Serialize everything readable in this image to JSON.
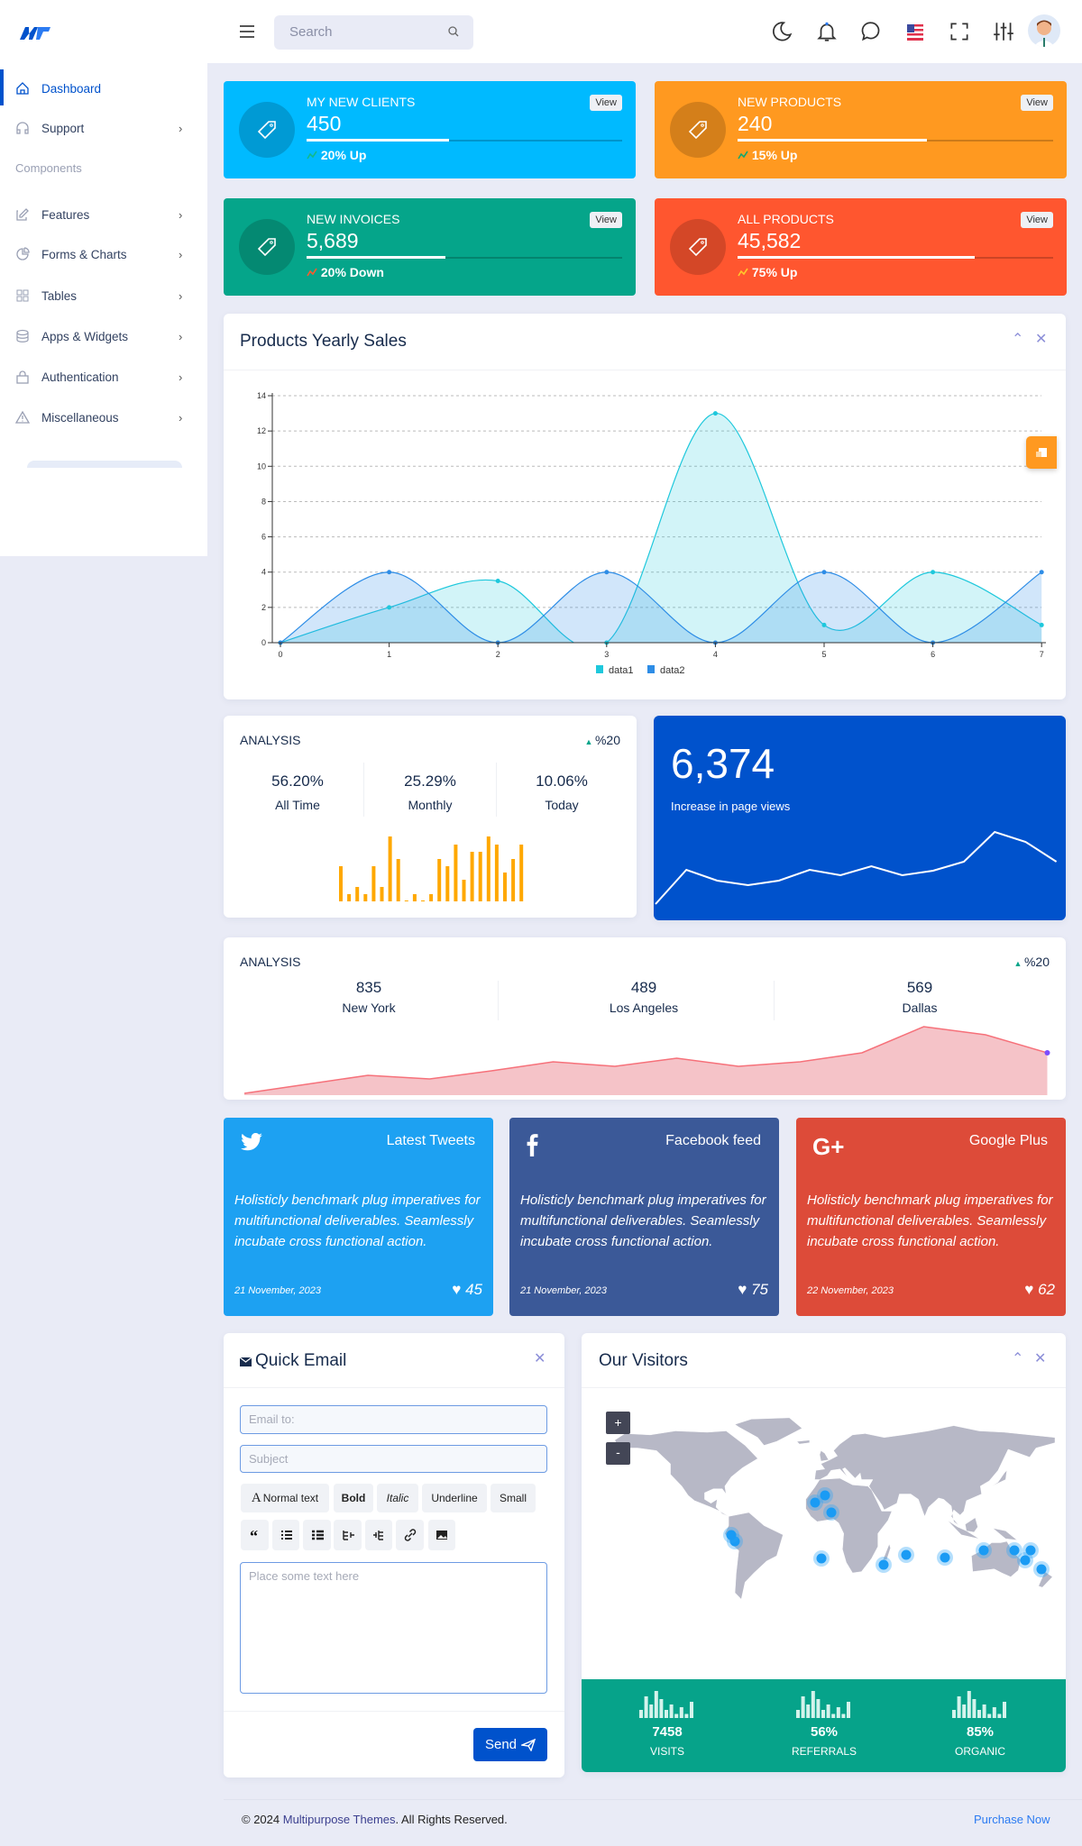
{
  "header": {
    "search_placeholder": "Search",
    "icons": [
      "menu-icon",
      "search-icon",
      "moon-icon",
      "bell-icon",
      "chat-icon",
      "us-flag-icon",
      "fullscreen-icon",
      "sliders-icon",
      "avatar"
    ]
  },
  "sidebar": {
    "section_label": "Components",
    "items": [
      {
        "label": "Dashboard",
        "icon": "home-icon",
        "active": true
      },
      {
        "label": "Support",
        "icon": "headset-icon"
      },
      {
        "label": "Features",
        "icon": "edit-icon"
      },
      {
        "label": "Forms & Charts",
        "icon": "pie-icon"
      },
      {
        "label": "Tables",
        "icon": "grid-icon"
      },
      {
        "label": "Apps & Widgets",
        "icon": "database-icon"
      },
      {
        "label": "Authentication",
        "icon": "lock-icon"
      },
      {
        "label": "Miscellaneous",
        "icon": "warning-icon"
      }
    ]
  },
  "stats": [
    {
      "title": "MY NEW CLIENTS",
      "value": "450",
      "trend": "20% Up",
      "progress": 45,
      "color": "#00baff",
      "trend_color": "#13b98a",
      "view_label": "View"
    },
    {
      "title": "NEW PRODUCTS",
      "value": "240",
      "trend": "15% Up",
      "progress": 60,
      "color": "#ff9920",
      "trend_color": "#13a870",
      "view_label": "View"
    },
    {
      "title": "NEW INVOICES",
      "value": "5,689",
      "trend": "20% Down",
      "progress": 44,
      "color": "#05a58a",
      "trend_color": "#ff5a2c",
      "view_label": "View"
    },
    {
      "title": "ALL PRODUCTS",
      "value": "45,582",
      "trend": "75% Up",
      "progress": 75,
      "color": "#ff562f",
      "trend_color": "#ffc82c",
      "view_label": "View"
    }
  ],
  "yearly_sales": {
    "title": "Products Yearly Sales"
  },
  "analysis1": {
    "title": "ANALYSIS",
    "change": "%20",
    "cols": [
      {
        "value": "56.20%",
        "label": "All Time"
      },
      {
        "value": "25.29%",
        "label": "Monthly"
      },
      {
        "value": "10.06%",
        "label": "Today"
      }
    ]
  },
  "pageviews": {
    "value": "6,374",
    "label": "Increase in page views",
    "color": "#0052cc"
  },
  "analysis2": {
    "title": "ANALYSIS",
    "change": "%20",
    "cols": [
      {
        "value": "835",
        "label": "New York"
      },
      {
        "value": "489",
        "label": "Los Angeles"
      },
      {
        "value": "569",
        "label": "Dallas"
      }
    ]
  },
  "social": [
    {
      "title": "Latest Tweets",
      "icon": "twitter-icon",
      "text": "Holisticly benchmark plug imperatives for multifunctional deliverables. Seamlessly incubate cross functional action.",
      "date": "21 November, 2023",
      "likes": "45",
      "color": "#1da1f2"
    },
    {
      "title": "Facebook feed",
      "icon": "facebook-icon",
      "text": "Holisticly benchmark plug imperatives for multifunctional deliverables. Seamlessly incubate cross functional action.",
      "date": "21 November, 2023",
      "likes": "75",
      "color": "#3b5998"
    },
    {
      "title": "Google Plus",
      "icon": "google-plus-icon",
      "text": "Holisticly benchmark plug imperatives for multifunctional deliverables. Seamlessly incubate cross functional action.",
      "date": "22 November, 2023",
      "likes": "62",
      "color": "#dd4b39"
    }
  ],
  "email": {
    "title": "Quick Email",
    "to_placeholder": "Email to:",
    "subject_placeholder": "Subject",
    "body_placeholder": "Place some text here",
    "toolbar": [
      "Normal text",
      "Bold",
      "Italic",
      "Underline",
      "Small"
    ],
    "toolbar_icons": [
      "quote-icon",
      "unordered-list-icon",
      "ordered-list-icon",
      "outdent-icon",
      "indent-icon",
      "link-icon",
      "image-icon"
    ],
    "send_label": "Send"
  },
  "visitors": {
    "title": "Our Visitors",
    "zoom_in": "+",
    "zoom_out": "-",
    "stats": [
      {
        "value": "7458",
        "label": "VISITS",
        "sparkline": [
          3,
          8,
          5,
          10,
          7,
          3,
          5,
          1.5,
          4,
          1.5,
          6
        ]
      },
      {
        "value": "56%",
        "label": "REFERRALS",
        "sparkline": [
          3,
          8,
          5,
          10,
          7,
          3,
          5,
          1.5,
          4,
          1.5,
          6
        ]
      },
      {
        "value": "85%",
        "label": "ORGANIC",
        "sparkline": [
          3,
          8,
          5,
          10,
          7,
          3,
          5,
          1.5,
          4,
          1.5,
          6
        ]
      }
    ],
    "color": "#06a38a"
  },
  "footer": {
    "prefix": "© 2024 ",
    "brand": "Multipurpose Themes",
    "suffix": ". All Rights Reserved.",
    "purchase": "Purchase Now"
  },
  "chart_data": [
    {
      "type": "area",
      "title": "Products Yearly Sales",
      "x": [
        0,
        1,
        2,
        3,
        4,
        5,
        6,
        7
      ],
      "ylim": [
        0,
        14
      ],
      "yticks": [
        0,
        2,
        4,
        6,
        8,
        10,
        12,
        14
      ],
      "grid": true,
      "legend": "bottom",
      "series": [
        {
          "name": "data1",
          "values": [
            0,
            2,
            3.5,
            0,
            13,
            1,
            4,
            1
          ],
          "color": "#1ec8dc"
        },
        {
          "name": "data2",
          "values": [
            0,
            4,
            0,
            4,
            0,
            4,
            0,
            4
          ],
          "color": "#2e8de6"
        }
      ]
    },
    {
      "type": "bar",
      "values": [
        39,
        8,
        16,
        8,
        39,
        16,
        72,
        47,
        1,
        8,
        1,
        8,
        47,
        39,
        63,
        24,
        55,
        55,
        72,
        63,
        32,
        47,
        63
      ],
      "color": "#ffa800"
    },
    {
      "type": "line",
      "values": [
        7,
        45,
        33,
        28,
        33,
        45,
        39,
        49,
        39,
        44,
        54,
        87,
        76,
        54
      ],
      "color": "#ffffff"
    },
    {
      "type": "area",
      "values": [
        0,
        10,
        20,
        16,
        25,
        35,
        30,
        39,
        30,
        35,
        45,
        74,
        65,
        45
      ],
      "color": "#f6717a"
    }
  ]
}
